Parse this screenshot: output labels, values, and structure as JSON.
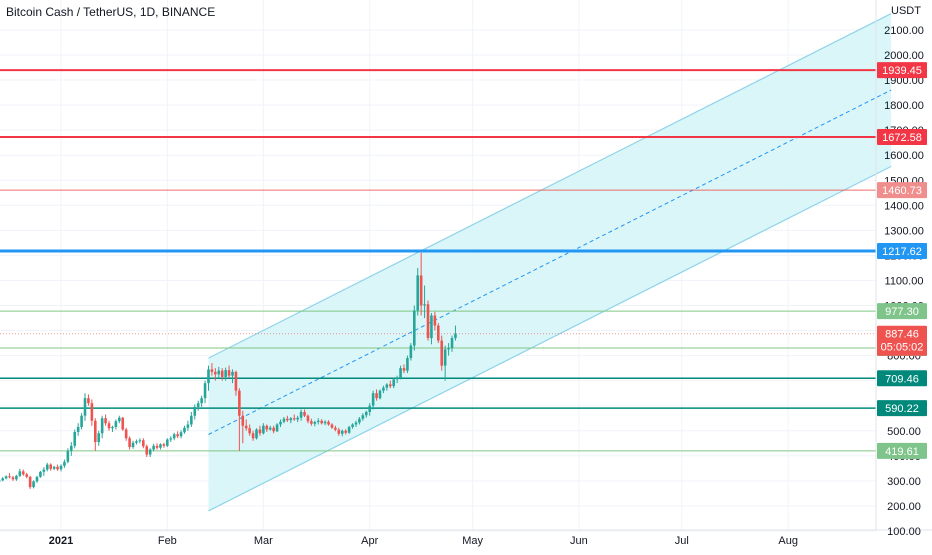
{
  "header": {
    "title": "Bitcoin Cash / TetherUS, 1D, BINANCE",
    "quote_currency": "USDT"
  },
  "colors": {
    "up": "#26a69a",
    "down": "#ef5350",
    "channel_fill": "#d4f4f7",
    "channel_line": "#8fd3ea",
    "blue_level": "#2196f3",
    "red_level": "#f23645",
    "green_level": "#81c784",
    "teal_level": "#00897b"
  },
  "chart_data": {
    "type": "candlestick",
    "y_axis": {
      "min": 0,
      "max": 2100,
      "ticks": [
        100,
        200,
        300,
        400,
        500,
        600,
        700,
        800,
        900,
        1000,
        1100,
        1200,
        1300,
        1400,
        1500,
        1600,
        1700,
        1800,
        1900,
        2000,
        2100
      ],
      "tick_labels": [
        "100.00",
        "200.00",
        "300.00",
        "400.00",
        "500.00",
        "600.00",
        "700.00",
        "800.00",
        "900.00",
        "1000.00",
        "1100.00",
        "1200.00",
        "1300.00",
        "1400.00",
        "1500.00",
        "1600.00",
        "1700.00",
        "1800.00",
        "1900.00",
        "2000.00",
        "2100.00"
      ]
    },
    "x_axis": {
      "ticks": [
        {
          "date": "2021-01-01",
          "label": "2021"
        },
        {
          "date": "2021-02-01",
          "label": "Feb"
        },
        {
          "date": "2021-03-01",
          "label": "Mar"
        },
        {
          "date": "2021-04-01",
          "label": "Apr"
        },
        {
          "date": "2021-05-01",
          "label": "May"
        },
        {
          "date": "2021-06-01",
          "label": "Jun"
        },
        {
          "date": "2021-07-01",
          "label": "Jul"
        },
        {
          "date": "2021-08-01",
          "label": "Aug"
        }
      ]
    },
    "levels": [
      {
        "value": 1939.45,
        "label": "1939.45",
        "style": "red"
      },
      {
        "value": 1672.58,
        "label": "1672.58",
        "style": "red"
      },
      {
        "value": 1460.73,
        "label": "1460.73",
        "style": "lightred"
      },
      {
        "value": 1217.62,
        "label": "1217.62",
        "style": "blue"
      },
      {
        "value": 977.3,
        "label": "977.30",
        "style": "green"
      },
      {
        "value": 830.54,
        "label": "830.54",
        "style": "green"
      },
      {
        "value": 709.46,
        "label": "709.46",
        "style": "teal"
      },
      {
        "value": 590.22,
        "label": "590.22",
        "style": "teal"
      },
      {
        "value": 419.61,
        "label": "419.61",
        "style": "green"
      }
    ],
    "last_price": {
      "value": 887.46,
      "label": "887.46",
      "countdown": "05:05:02"
    },
    "channel": {
      "start_date": "2021-02-13",
      "end_date": "2021-08-31",
      "mid_start": 485,
      "mid_end": 1860,
      "half_width": 305
    },
    "candles": [
      [
        "2020-12-14",
        297,
        290,
        308,
        302
      ],
      [
        "2020-12-15",
        302,
        298,
        315,
        310
      ],
      [
        "2020-12-16",
        310,
        306,
        322,
        318
      ],
      [
        "2020-12-17",
        318,
        310,
        331,
        314
      ],
      [
        "2020-12-18",
        314,
        300,
        320,
        306
      ],
      [
        "2020-12-19",
        306,
        300,
        324,
        320
      ],
      [
        "2020-12-20",
        320,
        315,
        348,
        338
      ],
      [
        "2020-12-21",
        338,
        320,
        345,
        326
      ],
      [
        "2020-12-22",
        326,
        310,
        332,
        316
      ],
      [
        "2020-12-23",
        316,
        268,
        320,
        275
      ],
      [
        "2020-12-24",
        275,
        270,
        302,
        298
      ],
      [
        "2020-12-25",
        298,
        292,
        320,
        316
      ],
      [
        "2020-12-26",
        316,
        312,
        340,
        336
      ],
      [
        "2020-12-27",
        336,
        320,
        355,
        345
      ],
      [
        "2020-12-28",
        345,
        338,
        372,
        365
      ],
      [
        "2020-12-29",
        365,
        340,
        370,
        348
      ],
      [
        "2020-12-30",
        348,
        343,
        360,
        356
      ],
      [
        "2020-12-31",
        356,
        340,
        365,
        346
      ],
      [
        "2021-01-01",
        346,
        338,
        366,
        360
      ],
      [
        "2021-01-02",
        360,
        352,
        385,
        376
      ],
      [
        "2021-01-03",
        376,
        370,
        430,
        420
      ],
      [
        "2021-01-04",
        420,
        400,
        455,
        440
      ],
      [
        "2021-01-05",
        440,
        430,
        505,
        495
      ],
      [
        "2021-01-06",
        495,
        480,
        530,
        515
      ],
      [
        "2021-01-07",
        515,
        505,
        570,
        560
      ],
      [
        "2021-01-08",
        560,
        540,
        650,
        630
      ],
      [
        "2021-01-09",
        630,
        600,
        645,
        610
      ],
      [
        "2021-01-10",
        610,
        520,
        625,
        540
      ],
      [
        "2021-01-11",
        540,
        420,
        550,
        455
      ],
      [
        "2021-01-12",
        455,
        440,
        500,
        490
      ],
      [
        "2021-01-13",
        490,
        470,
        560,
        550
      ],
      [
        "2021-01-14",
        550,
        520,
        565,
        530
      ],
      [
        "2021-01-15",
        530,
        500,
        540,
        510
      ],
      [
        "2021-01-16",
        510,
        495,
        520,
        515
      ],
      [
        "2021-01-17",
        515,
        505,
        545,
        538
      ],
      [
        "2021-01-18",
        538,
        530,
        560,
        552
      ],
      [
        "2021-01-19",
        552,
        500,
        555,
        505
      ],
      [
        "2021-01-20",
        505,
        460,
        512,
        470
      ],
      [
        "2021-01-21",
        470,
        425,
        478,
        435
      ],
      [
        "2021-01-22",
        435,
        428,
        460,
        452
      ],
      [
        "2021-01-23",
        452,
        445,
        465,
        458
      ],
      [
        "2021-01-24",
        458,
        450,
        470,
        462
      ],
      [
        "2021-01-25",
        462,
        430,
        470,
        438
      ],
      [
        "2021-01-26",
        438,
        395,
        445,
        405
      ],
      [
        "2021-01-27",
        405,
        395,
        430,
        425
      ],
      [
        "2021-01-28",
        425,
        418,
        448,
        440
      ],
      [
        "2021-01-29",
        440,
        425,
        450,
        432
      ],
      [
        "2021-01-30",
        432,
        425,
        450,
        446
      ],
      [
        "2021-01-31",
        446,
        432,
        452,
        440
      ],
      [
        "2021-02-01",
        440,
        435,
        470,
        465
      ],
      [
        "2021-02-02",
        465,
        455,
        478,
        470
      ],
      [
        "2021-02-03",
        470,
        462,
        492,
        486
      ],
      [
        "2021-02-04",
        486,
        470,
        498,
        478
      ],
      [
        "2021-02-05",
        478,
        470,
        502,
        494
      ],
      [
        "2021-02-06",
        494,
        488,
        520,
        512
      ],
      [
        "2021-02-07",
        512,
        500,
        540,
        525
      ],
      [
        "2021-02-08",
        525,
        515,
        575,
        560
      ],
      [
        "2021-02-09",
        560,
        545,
        605,
        595
      ],
      [
        "2021-02-10",
        595,
        580,
        620,
        610
      ],
      [
        "2021-02-11",
        610,
        595,
        640,
        630
      ],
      [
        "2021-02-12",
        630,
        610,
        700,
        690
      ],
      [
        "2021-02-13",
        690,
        660,
        760,
        745
      ],
      [
        "2021-02-14",
        745,
        720,
        770,
        735
      ],
      [
        "2021-02-15",
        735,
        700,
        750,
        725
      ],
      [
        "2021-02-16",
        725,
        710,
        755,
        740
      ],
      [
        "2021-02-17",
        740,
        700,
        750,
        715
      ],
      [
        "2021-02-18",
        715,
        700,
        752,
        742
      ],
      [
        "2021-02-19",
        742,
        710,
        760,
        720
      ],
      [
        "2021-02-20",
        720,
        690,
        745,
        735
      ],
      [
        "2021-02-21",
        735,
        640,
        740,
        660
      ],
      [
        "2021-02-22",
        660,
        420,
        670,
        560
      ],
      [
        "2021-02-23",
        560,
        450,
        580,
        520
      ],
      [
        "2021-02-24",
        520,
        500,
        545,
        510
      ],
      [
        "2021-02-25",
        510,
        480,
        525,
        490
      ],
      [
        "2021-02-26",
        490,
        460,
        500,
        470
      ],
      [
        "2021-02-27",
        470,
        465,
        510,
        505
      ],
      [
        "2021-02-28",
        505,
        480,
        520,
        490
      ],
      [
        "2021-03-01",
        490,
        485,
        530,
        520
      ],
      [
        "2021-03-02",
        520,
        495,
        525,
        505
      ],
      [
        "2021-03-03",
        505,
        500,
        520,
        512
      ],
      [
        "2021-03-04",
        512,
        490,
        520,
        498
      ],
      [
        "2021-03-05",
        498,
        495,
        530,
        525
      ],
      [
        "2021-03-06",
        525,
        515,
        545,
        536
      ],
      [
        "2021-03-07",
        536,
        530,
        555,
        548
      ],
      [
        "2021-03-08",
        548,
        535,
        560,
        542
      ],
      [
        "2021-03-09",
        542,
        530,
        555,
        550
      ],
      [
        "2021-03-10",
        550,
        540,
        565,
        545
      ],
      [
        "2021-03-11",
        545,
        535,
        560,
        552
      ],
      [
        "2021-03-12",
        552,
        540,
        585,
        575
      ],
      [
        "2021-03-13",
        575,
        555,
        585,
        560
      ],
      [
        "2021-03-14",
        560,
        530,
        565,
        538
      ],
      [
        "2021-03-15",
        538,
        520,
        548,
        528
      ],
      [
        "2021-03-16",
        528,
        518,
        540,
        535
      ],
      [
        "2021-03-17",
        535,
        525,
        550,
        540
      ],
      [
        "2021-03-18",
        540,
        525,
        546,
        530
      ],
      [
        "2021-03-19",
        530,
        522,
        542,
        536
      ],
      [
        "2021-03-20",
        536,
        520,
        542,
        525
      ],
      [
        "2021-03-21",
        525,
        508,
        530,
        512
      ],
      [
        "2021-03-22",
        512,
        498,
        520,
        504
      ],
      [
        "2021-03-23",
        504,
        480,
        512,
        488
      ],
      [
        "2021-03-24",
        488,
        478,
        505,
        500
      ],
      [
        "2021-03-25",
        500,
        485,
        506,
        492
      ],
      [
        "2021-03-26",
        492,
        488,
        520,
        515
      ],
      [
        "2021-03-27",
        515,
        508,
        530,
        525
      ],
      [
        "2021-03-28",
        525,
        515,
        540,
        533
      ],
      [
        "2021-03-29",
        533,
        525,
        555,
        548
      ],
      [
        "2021-03-30",
        548,
        540,
        570,
        562
      ],
      [
        "2021-03-31",
        562,
        552,
        580,
        575
      ],
      [
        "2021-04-01",
        575,
        560,
        610,
        600
      ],
      [
        "2021-04-02",
        600,
        585,
        660,
        650
      ],
      [
        "2021-04-03",
        650,
        620,
        665,
        630
      ],
      [
        "2021-04-04",
        630,
        625,
        665,
        660
      ],
      [
        "2021-04-05",
        660,
        650,
        680,
        672
      ],
      [
        "2021-04-06",
        672,
        660,
        690,
        685
      ],
      [
        "2021-04-07",
        685,
        670,
        700,
        678
      ],
      [
        "2021-04-08",
        678,
        670,
        710,
        705
      ],
      [
        "2021-04-09",
        705,
        690,
        720,
        710
      ],
      [
        "2021-04-10",
        710,
        705,
        760,
        750
      ],
      [
        "2021-04-11",
        750,
        730,
        765,
        740
      ],
      [
        "2021-04-12",
        740,
        730,
        800,
        790
      ],
      [
        "2021-04-13",
        790,
        780,
        850,
        840
      ],
      [
        "2021-04-14",
        840,
        820,
        1000,
        980
      ],
      [
        "2021-04-15",
        980,
        960,
        1150,
        1120
      ],
      [
        "2021-04-16",
        1120,
        960,
        1210,
        1000
      ],
      [
        "2021-04-17",
        1000,
        950,
        1080,
        1005
      ],
      [
        "2021-04-18",
        1005,
        860,
        1020,
        870
      ],
      [
        "2021-04-19",
        870,
        845,
        970,
        960
      ],
      [
        "2021-04-20",
        960,
        900,
        975,
        920
      ],
      [
        "2021-04-21",
        920,
        850,
        930,
        860
      ],
      [
        "2021-04-22",
        860,
        740,
        880,
        760
      ],
      [
        "2021-04-23",
        760,
        700,
        840,
        825
      ],
      [
        "2021-04-24",
        825,
        800,
        850,
        830
      ],
      [
        "2021-04-25",
        830,
        815,
        880,
        870
      ],
      [
        "2021-04-26",
        870,
        860,
        920,
        887.46
      ]
    ]
  }
}
